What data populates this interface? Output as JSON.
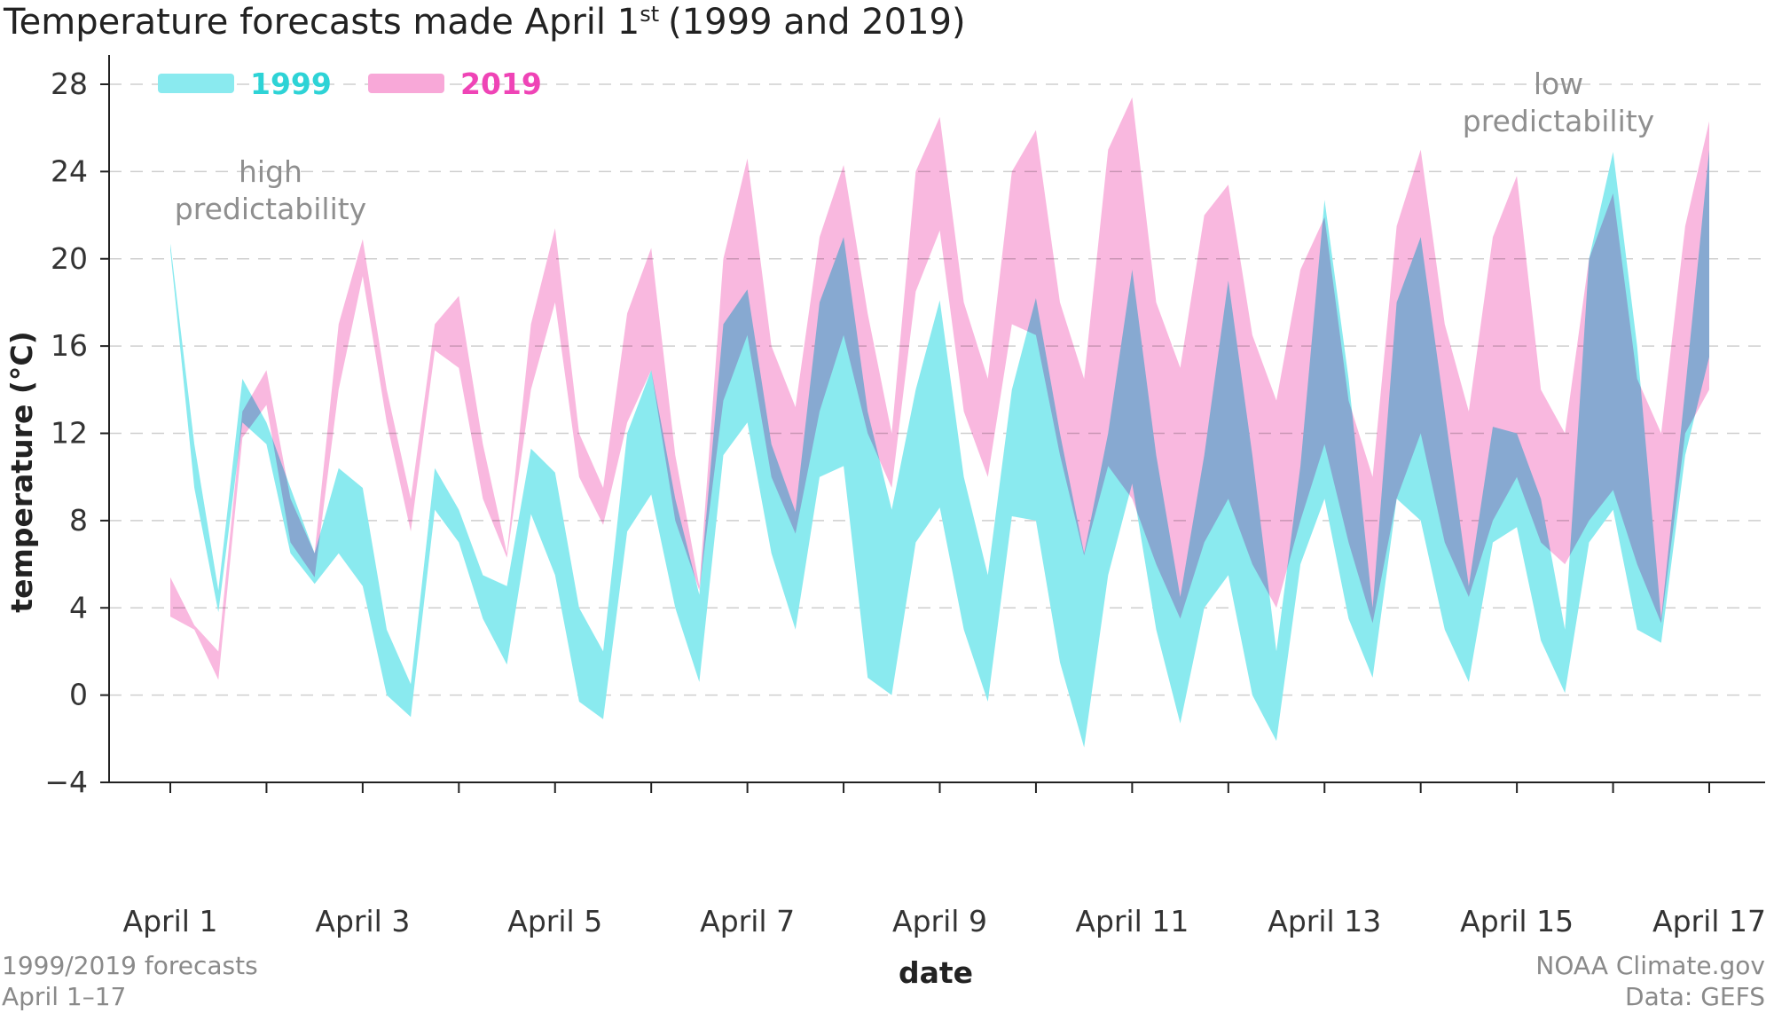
{
  "title": {
    "main": "Temperature forecasts made April 1",
    "superscript": "st",
    "suffix": "(1999 and 2019)"
  },
  "annotations": {
    "high_1": "high",
    "high_2": "predictability",
    "low_1": "low",
    "low_2": "predictability"
  },
  "footer": {
    "left_1": "1999/2019 forecasts",
    "left_2": "April 1–17",
    "right_1": "NOAA Climate.gov",
    "right_2": "Data: GEFS"
  },
  "chart_data": {
    "type": "area",
    "title": "Temperature forecasts made April 1st (1999 and 2019)",
    "xlabel": "date",
    "ylabel": "temperature (°C)",
    "xlim": [
      1,
      17
    ],
    "ylim": [
      -4,
      28
    ],
    "x_ticks": [
      1,
      3,
      5,
      7,
      9,
      11,
      13,
      15,
      17
    ],
    "x_tick_labels": [
      "April 1",
      "April 3",
      "April 5",
      "April 7",
      "April 9",
      "April 11",
      "April 13",
      "April 15",
      "April 17"
    ],
    "y_ticks": [
      -4,
      0,
      4,
      8,
      12,
      16,
      20,
      24,
      28
    ],
    "y_tick_labels": [
      "−4",
      "0",
      "4",
      "8",
      "12",
      "16",
      "20",
      "24",
      "28"
    ],
    "grid": "horizontal dashed",
    "legend": "top-left",
    "series": [
      {
        "name": "1999",
        "color": "#8aeaef",
        "legend_color": "#2ed3d6",
        "x": [
          1,
          1.25,
          1.5,
          1.75,
          2,
          2.25,
          2.5,
          2.75,
          3,
          3.25,
          3.5,
          3.75,
          4,
          4.25,
          4.5,
          4.75,
          5,
          5.25,
          5.5,
          5.75,
          6,
          6.25,
          6.5,
          6.75,
          7,
          7.25,
          7.5,
          7.75,
          8,
          8.25,
          8.5,
          8.75,
          9,
          9.25,
          9.5,
          9.75,
          10,
          10.25,
          10.5,
          10.75,
          11,
          11.25,
          11.5,
          11.75,
          12,
          12.25,
          12.5,
          12.75,
          13,
          13.25,
          13.5,
          13.75,
          14,
          14.25,
          14.5,
          14.75,
          15,
          15.25,
          15.5,
          15.75,
          16,
          16.25,
          16.5,
          16.75,
          17
        ],
        "high": [
          20.7,
          11.5,
          4.8,
          14.5,
          12.5,
          9.5,
          6.5,
          10.4,
          9.5,
          3.0,
          0.5,
          10.4,
          8.5,
          5.5,
          5.0,
          11.3,
          10.2,
          4.0,
          2.0,
          12.0,
          14.9,
          9.0,
          4.6,
          17.0,
          18.6,
          11.5,
          8.4,
          18.0,
          21.0,
          13.0,
          8.5,
          14.0,
          18.1,
          10.0,
          5.5,
          14.0,
          18.2,
          12.0,
          6.5,
          12.0,
          19.5,
          11.0,
          4.5,
          11.0,
          19.0,
          11.0,
          2.0,
          10.5,
          22.7,
          14.5,
          4.0,
          18.0,
          21.0,
          13.0,
          5.0,
          12.3,
          12.0,
          9.0,
          3.0,
          20.0,
          24.9,
          16.0,
          3.5,
          14.0,
          25.0
        ],
        "low": [
          20.4,
          9.5,
          3.8,
          12.5,
          11.5,
          6.5,
          5.1,
          6.5,
          5.0,
          0.0,
          -1.0,
          8.5,
          7.0,
          3.5,
          1.4,
          8.3,
          5.5,
          -0.3,
          -1.1,
          7.5,
          9.2,
          4.0,
          0.6,
          11.0,
          12.5,
          6.5,
          3.0,
          10.0,
          10.5,
          0.8,
          0.0,
          7.0,
          8.6,
          3.0,
          -0.3,
          8.2,
          8.0,
          1.5,
          -2.4,
          5.5,
          9.7,
          3.0,
          -1.3,
          4.0,
          5.5,
          0.0,
          -2.1,
          6.0,
          9.0,
          3.5,
          0.8,
          9.0,
          8.0,
          3.0,
          0.6,
          7.0,
          7.7,
          2.5,
          0.1,
          7.0,
          8.5,
          3.0,
          2.4,
          11.0,
          15.5
        ]
      },
      {
        "name": "2019",
        "color": "#f8a8d8",
        "legend_color": "#ef44b6",
        "x": [
          1,
          1.25,
          1.5,
          1.75,
          2,
          2.25,
          2.5,
          2.75,
          3,
          3.25,
          3.5,
          3.75,
          4,
          4.25,
          4.5,
          4.75,
          5,
          5.25,
          5.5,
          5.75,
          6,
          6.25,
          6.5,
          6.75,
          7,
          7.25,
          7.5,
          7.75,
          8,
          8.25,
          8.5,
          8.75,
          9,
          9.25,
          9.5,
          9.75,
          10,
          10.25,
          10.5,
          10.75,
          11,
          11.25,
          11.5,
          11.75,
          12,
          12.25,
          12.5,
          12.75,
          13,
          13.25,
          13.5,
          13.75,
          14,
          14.25,
          14.5,
          14.75,
          15,
          15.25,
          15.5,
          15.75,
          16,
          16.25,
          16.5,
          16.75,
          17
        ],
        "high": [
          5.4,
          3.2,
          2.0,
          13.0,
          14.9,
          9.0,
          6.5,
          17.0,
          20.9,
          14.0,
          9.0,
          17.0,
          18.3,
          11.5,
          6.5,
          17.0,
          21.4,
          12.0,
          9.5,
          17.5,
          20.5,
          11.0,
          5.0,
          20.0,
          24.6,
          16.0,
          13.2,
          21.0,
          24.3,
          17.5,
          12.0,
          24.0,
          26.5,
          18.0,
          14.5,
          24.0,
          25.9,
          18.0,
          14.5,
          25.0,
          27.4,
          18.0,
          15.0,
          22.0,
          23.4,
          16.5,
          13.5,
          19.5,
          21.9,
          13.5,
          10.0,
          21.5,
          25.0,
          17.0,
          13.0,
          21.0,
          23.8,
          14.0,
          12.0,
          20.0,
          23.0,
          14.5,
          12.0,
          21.5,
          26.3
        ],
        "low": [
          3.6,
          3.0,
          0.7,
          11.8,
          13.3,
          7.0,
          5.4,
          14.0,
          19.2,
          12.5,
          7.5,
          15.8,
          15.0,
          9.0,
          6.3,
          14.0,
          18.0,
          10.0,
          7.8,
          12.5,
          14.9,
          8.0,
          4.8,
          13.5,
          16.5,
          10.0,
          7.4,
          13.0,
          16.5,
          12.0,
          9.5,
          18.5,
          21.3,
          13.0,
          10.0,
          17.0,
          16.5,
          11.0,
          6.4,
          10.5,
          9.0,
          6.0,
          3.5,
          7.0,
          9.0,
          6.0,
          4.0,
          8.0,
          11.5,
          7.0,
          3.3,
          9.0,
          12.0,
          7.0,
          4.5,
          8.0,
          10.0,
          7.0,
          6.0,
          8.0,
          9.4,
          6.0,
          3.3,
          12.0,
          14.0
        ]
      }
    ]
  }
}
